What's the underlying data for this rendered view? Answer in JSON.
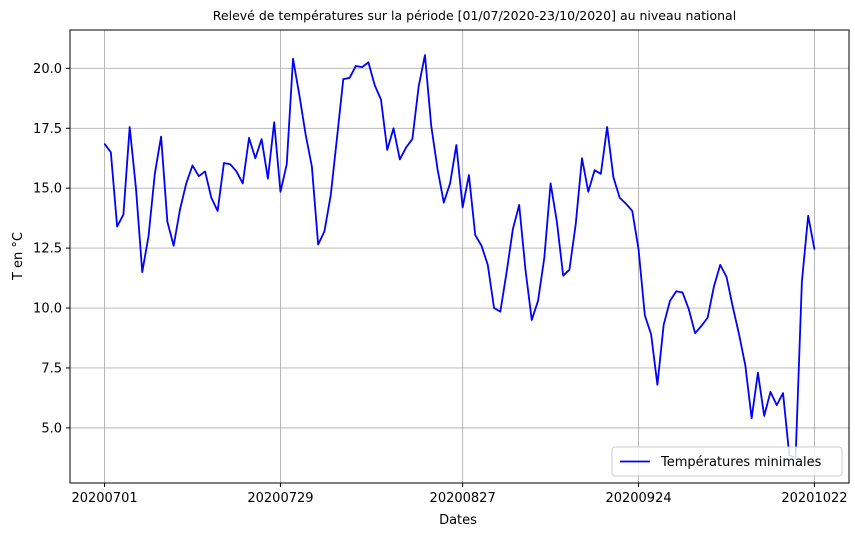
{
  "chart_data": {
    "type": "line",
    "title": "Relevé de températures sur la période [01/07/2020-23/10/2020] au niveau national",
    "xlabel": "Dates",
    "ylabel": "T en °C",
    "x_tick_labels": [
      "20200701",
      "20200729",
      "20200827",
      "20200924",
      "20201022"
    ],
    "x_tick_day_index": [
      0,
      28,
      57,
      85,
      113
    ],
    "y_ticks": [
      5.0,
      7.5,
      10.0,
      12.5,
      15.0,
      17.5,
      20.0
    ],
    "y_tick_labels": [
      "5.0",
      "7.5",
      "10.0",
      "12.5",
      "15.0",
      "17.5",
      "20.0"
    ],
    "ylim": [
      2.7,
      21.6
    ],
    "xlim_days": [
      -5.5,
      118.5
    ],
    "grid": true,
    "legend_position": "lower-right",
    "series": [
      {
        "name": "Températures minimales",
        "color": "#0000ff",
        "x_start": "20200701",
        "x_step_days": 1,
        "values": [
          16.85,
          16.5,
          13.4,
          13.9,
          17.55,
          15.0,
          11.5,
          13.0,
          15.6,
          17.15,
          13.6,
          12.6,
          14.1,
          15.2,
          15.95,
          15.5,
          15.7,
          14.6,
          14.05,
          16.05,
          16.0,
          15.7,
          15.2,
          17.1,
          16.25,
          17.05,
          15.4,
          17.75,
          14.85,
          16.0,
          20.4,
          18.9,
          17.25,
          15.9,
          12.65,
          13.2,
          14.7,
          17.1,
          19.55,
          19.6,
          20.1,
          20.05,
          20.25,
          19.3,
          18.7,
          16.6,
          17.5,
          16.2,
          16.7,
          17.05,
          19.25,
          20.55,
          17.6,
          15.8,
          14.4,
          15.2,
          16.8,
          14.2,
          15.55,
          13.05,
          12.6,
          11.8,
          10.0,
          9.85,
          11.5,
          13.3,
          14.3,
          11.6,
          9.5,
          10.3,
          12.1,
          15.2,
          13.6,
          11.35,
          11.6,
          13.5,
          16.25,
          14.85,
          15.75,
          15.6,
          17.55,
          15.45,
          14.6,
          14.35,
          14.05,
          12.45,
          9.7,
          8.9,
          6.8,
          9.3,
          10.3,
          10.7,
          10.65,
          9.95,
          8.95,
          9.25,
          9.6,
          10.9,
          11.8,
          11.3,
          10.05,
          8.9,
          7.6,
          5.4,
          7.3,
          5.5,
          6.5,
          5.95,
          6.45,
          3.85,
          3.75,
          11.1,
          13.85,
          12.45
        ]
      }
    ]
  }
}
